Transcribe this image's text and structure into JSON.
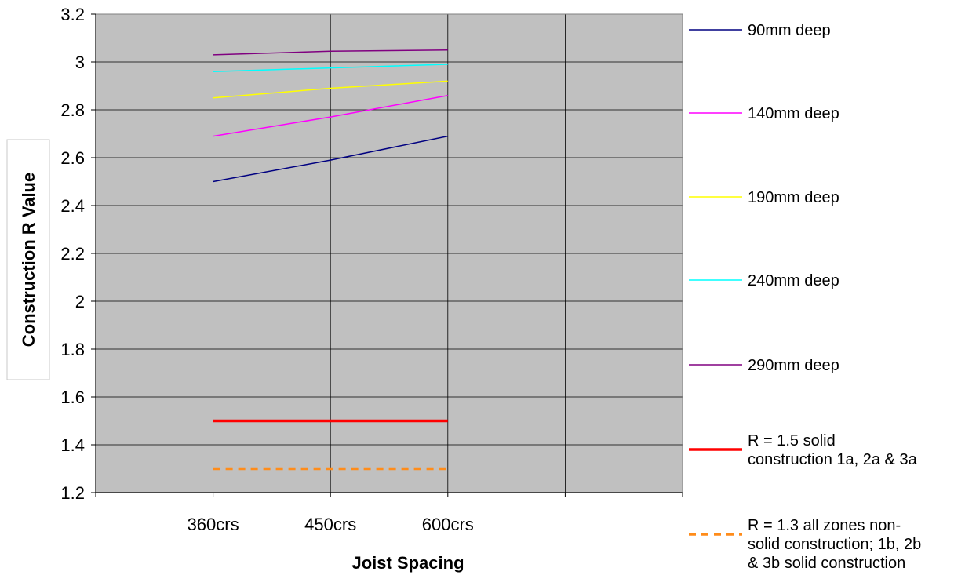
{
  "chart_data": {
    "type": "line",
    "title": "",
    "xlabel": "Joist Spacing",
    "ylabel": "Construction R Value",
    "categories": [
      "360crs",
      "450crs",
      "600crs"
    ],
    "ylim": [
      1.2,
      3.2
    ],
    "ytick_step": 0.2,
    "ytick_labels": [
      "1.2",
      "1.4",
      "1.6",
      "1.8",
      "2",
      "2.2",
      "2.4",
      "2.6",
      "2.8",
      "3",
      "3.2"
    ],
    "grid": true,
    "plot_background": "#c0c0c0",
    "legend_position": "right",
    "series": [
      {
        "name": "90mm deep",
        "values": [
          2.5,
          2.59,
          2.69
        ],
        "color": "#000080",
        "style": "solid",
        "width": 1.5
      },
      {
        "name": "140mm deep",
        "values": [
          2.69,
          2.77,
          2.86
        ],
        "color": "#ff00ff",
        "style": "solid",
        "width": 1.5
      },
      {
        "name": "190mm deep",
        "values": [
          2.85,
          2.89,
          2.92
        ],
        "color": "#ffff00",
        "style": "solid",
        "width": 1.5
      },
      {
        "name": "240mm deep",
        "values": [
          2.96,
          2.975,
          2.99
        ],
        "color": "#00ffff",
        "style": "solid",
        "width": 1.5
      },
      {
        "name": "290mm deep",
        "values": [
          3.03,
          3.045,
          3.05
        ],
        "color": "#800080",
        "style": "solid",
        "width": 1.5
      },
      {
        "name": "R = 1.5 solid construction 1a, 2a & 3a",
        "legend_lines": [
          "R = 1.5 solid",
          "construction 1a, 2a & 3a"
        ],
        "values": [
          1.5,
          1.5,
          1.5
        ],
        "color": "#ff0000",
        "style": "solid",
        "width": 3.5
      },
      {
        "name": "R = 1.3 all zones non-solid construction; 1b, 2b & 3b solid construction",
        "legend_lines": [
          "R = 1.3 all zones non-",
          "solid construction; 1b, 2b",
          "& 3b solid construction"
        ],
        "values": [
          1.3,
          1.3,
          1.3
        ],
        "color": "#ff8c1a",
        "style": "dashed",
        "width": 3.5
      }
    ]
  }
}
